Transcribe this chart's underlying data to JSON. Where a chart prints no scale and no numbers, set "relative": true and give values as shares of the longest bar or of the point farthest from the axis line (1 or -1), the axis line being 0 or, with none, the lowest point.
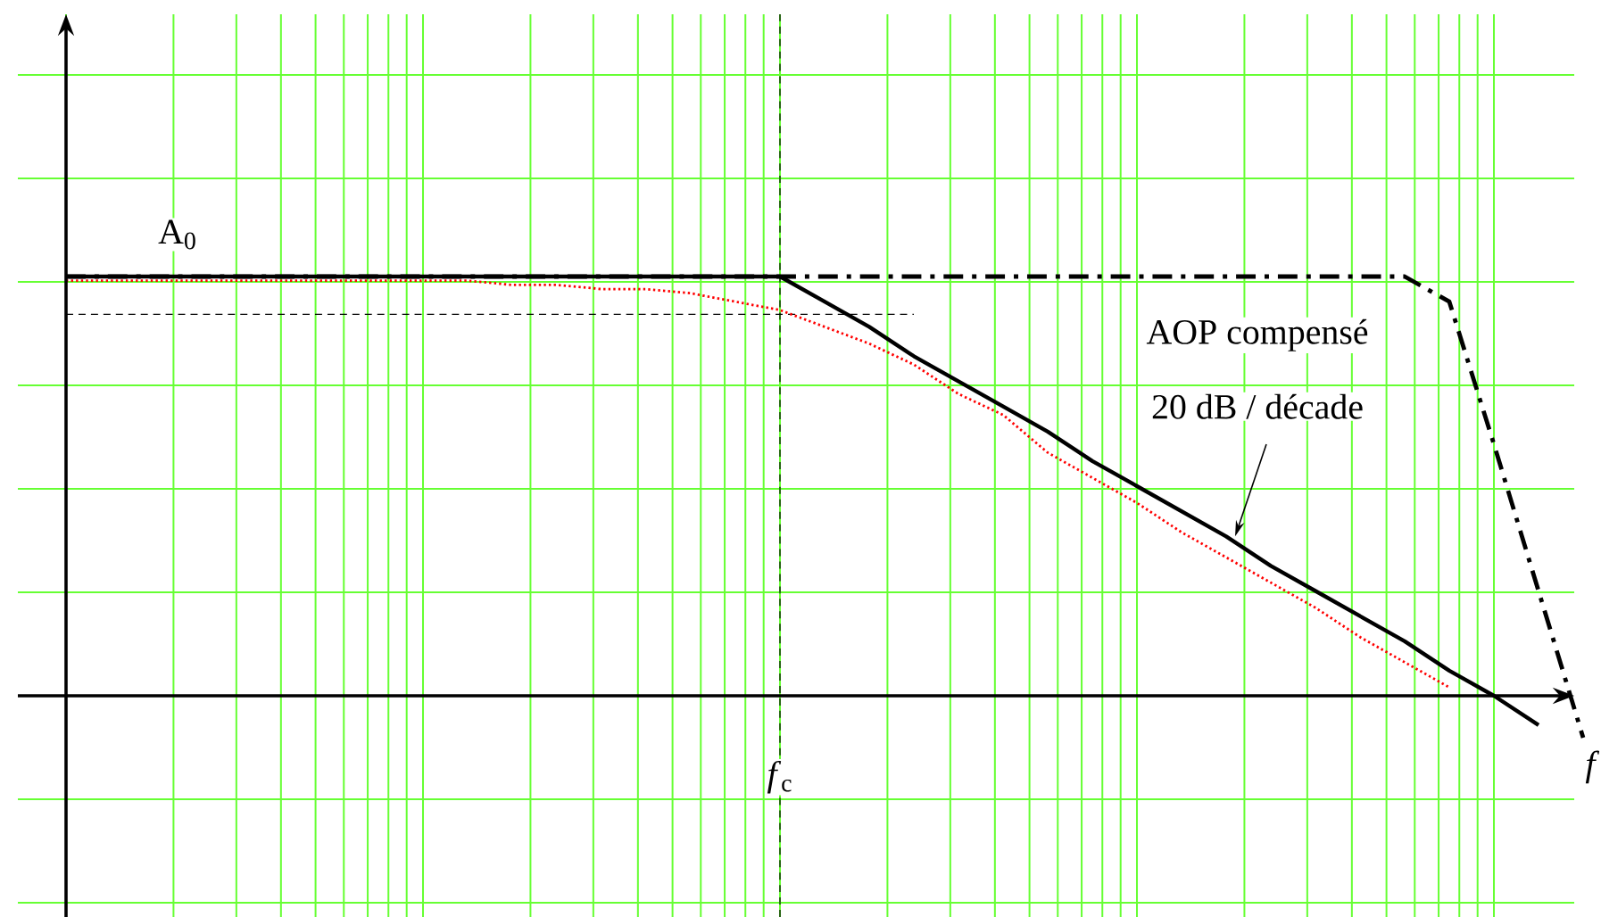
{
  "chart_data": {
    "type": "line",
    "relative": true,
    "xlabel": "f",
    "grid": true,
    "marker": "none",
    "categories": [
      null,
      null,
      null,
      null,
      null,
      null,
      null,
      null,
      null,
      null,
      null,
      null,
      null,
      null,
      null,
      null,
      null,
      null,
      null,
      null,
      null,
      null,
      null,
      null,
      null,
      null,
      null,
      null,
      null,
      null,
      null,
      null,
      null,
      null,
      null
    ],
    "series": [
      {
        "color": "#000000",
        "line_style": "dashdot",
        "values": [
          1,
          1,
          1,
          1,
          1,
          1,
          1,
          1,
          1,
          1,
          1,
          1,
          1,
          1,
          1,
          1,
          1,
          1,
          1,
          1,
          1,
          1,
          1,
          1,
          1,
          1,
          1,
          1,
          1,
          1,
          1,
          0.94,
          0.6,
          0.25,
          -0.1
        ]
      },
      {
        "color": "#000000",
        "line_style": "dashed",
        "values": [
          0.91,
          0.91,
          0.91,
          0.91,
          0.91,
          0.91,
          0.91,
          0.91,
          0.91,
          0.91,
          0.91,
          0.91,
          0.91,
          0.91,
          0.91,
          0.91,
          0.91,
          0.91,
          0.91,
          0.91,
          null,
          null,
          null,
          null,
          null,
          null,
          null,
          null,
          null,
          null,
          null,
          null,
          null,
          null,
          null
        ]
      },
      {
        "color": "#ff0000",
        "line_style": "dotted",
        "values": [
          0.99,
          0.99,
          0.99,
          0.99,
          0.99,
          0.99,
          0.99,
          0.99,
          0.99,
          0.99,
          0.98,
          0.98,
          0.97,
          0.97,
          0.96,
          0.94,
          0.92,
          0.88,
          0.84,
          0.79,
          0.72,
          0.67,
          0.58,
          0.52,
          0.46,
          0.39,
          0.33,
          0.27,
          0.21,
          0.14,
          0.08,
          0.02,
          null,
          null,
          null
        ]
      },
      {
        "color": "#000000",
        "line_style": "solid",
        "values": [
          1,
          1,
          1,
          1,
          1,
          1,
          1,
          1,
          1,
          1,
          1,
          1,
          1,
          1,
          1,
          1,
          1,
          0.94,
          0.88,
          0.81,
          0.75,
          0.69,
          0.63,
          0.56,
          0.5,
          0.44,
          0.38,
          0.31,
          0.25,
          0.19,
          0.13,
          0.06,
          0,
          -0.07,
          null
        ]
      }
    ],
    "annotations": [
      "A$_{0}$",
      "AOP compensé",
      "20 dB / décade",
      "*f*$_{c}$"
    ]
  }
}
